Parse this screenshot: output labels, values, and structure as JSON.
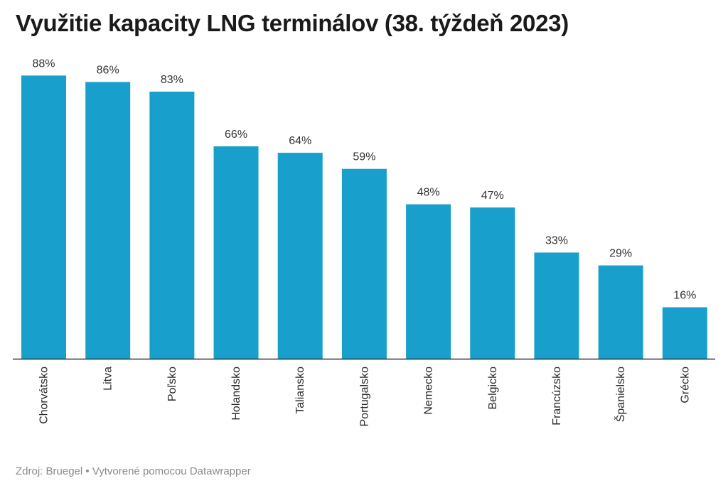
{
  "colors": {
    "bar": "#189fcc",
    "baseline": "#333333",
    "text": "#333333"
  },
  "source": {
    "text": "Zdroj: Bruegel • Vytvorené pomocou Datawrapper"
  },
  "chart_data": {
    "type": "bar",
    "title": "Využitie kapacity LNG terminálov (38. týždeň 2023)",
    "xlabel": "",
    "ylabel": "",
    "ylim": [
      0,
      100
    ],
    "grid": false,
    "value_suffix": "%",
    "categories": [
      "Chorvátsko",
      "Litva",
      "Poľsko",
      "Holandsko",
      "Taliansko",
      "Portugalsko",
      "Nemecko",
      "Belgicko",
      "Francúzsko",
      "Španielsko",
      "Grécko"
    ],
    "values": [
      88,
      86,
      83,
      66,
      64,
      59,
      48,
      47,
      33,
      29,
      16
    ],
    "value_labels": [
      "88%",
      "86%",
      "83%",
      "66%",
      "64%",
      "59%",
      "48%",
      "47%",
      "33%",
      "29%",
      "16%"
    ]
  }
}
